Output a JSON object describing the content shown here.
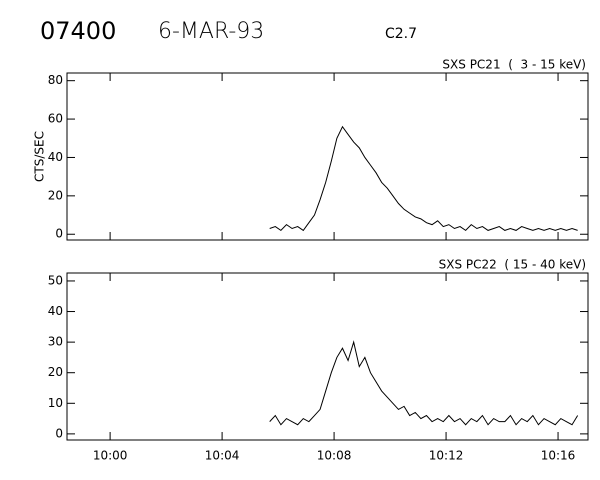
{
  "header": {
    "id": "07400",
    "date": "6-MAR-93",
    "class": "C2.7"
  },
  "chart_data": [
    {
      "type": "line",
      "title": "SXS PC21  (  3 - 15 keV)",
      "y_label": "CTS/SEC",
      "x": [
        5.7,
        5.9,
        6.1,
        6.3,
        6.5,
        6.7,
        6.9,
        7.1,
        7.3,
        7.5,
        7.7,
        7.9,
        8.1,
        8.3,
        8.5,
        8.7,
        8.9,
        9.1,
        9.3,
        9.5,
        9.7,
        9.9,
        10.1,
        10.3,
        10.5,
        10.7,
        10.9,
        11.1,
        11.3,
        11.5,
        11.7,
        11.9,
        12.1,
        12.3,
        12.5,
        12.7,
        12.9,
        13.1,
        13.3,
        13.5,
        13.7,
        13.9,
        14.1,
        14.3,
        14.5,
        14.7,
        14.9,
        15.1,
        15.3,
        15.5,
        15.7,
        15.9,
        16.1,
        16.3,
        16.5,
        16.7
      ],
      "series": [
        {
          "name": "PC21",
          "color": "#000000",
          "values": [
            3,
            4,
            2,
            5,
            3,
            4,
            2,
            6,
            10,
            18,
            27,
            38,
            50,
            56,
            52,
            48,
            45,
            40,
            36,
            32,
            27,
            24,
            20,
            16,
            13,
            11,
            9,
            8,
            6,
            5,
            7,
            4,
            5,
            3,
            4,
            2,
            5,
            3,
            4,
            2,
            3,
            4,
            2,
            3,
            2,
            4,
            3,
            2,
            3,
            2,
            3,
            2,
            3,
            2,
            3,
            2
          ]
        }
      ],
      "xlim": [
        -1.54,
        17.07
      ],
      "xticks": [
        0,
        4,
        8,
        12,
        16
      ],
      "ylim": [
        -3,
        84
      ],
      "yticks": [
        0,
        20,
        40,
        60,
        80
      ]
    },
    {
      "type": "line",
      "title": "SXS PC22  ( 15 - 40 keV)",
      "x": [
        5.7,
        5.9,
        6.1,
        6.3,
        6.5,
        6.7,
        6.9,
        7.1,
        7.3,
        7.5,
        7.7,
        7.9,
        8.1,
        8.3,
        8.5,
        8.7,
        8.9,
        9.1,
        9.3,
        9.5,
        9.7,
        9.9,
        10.1,
        10.3,
        10.5,
        10.7,
        10.9,
        11.1,
        11.3,
        11.5,
        11.7,
        11.9,
        12.1,
        12.3,
        12.5,
        12.7,
        12.9,
        13.1,
        13.3,
        13.5,
        13.7,
        13.9,
        14.1,
        14.3,
        14.5,
        14.7,
        14.9,
        15.1,
        15.3,
        15.5,
        15.7,
        15.9,
        16.1,
        16.3,
        16.5,
        16.7
      ],
      "series": [
        {
          "name": "PC22",
          "color": "#000000",
          "values": [
            4,
            6,
            3,
            5,
            4,
            3,
            5,
            4,
            6,
            8,
            14,
            20,
            25,
            28,
            24,
            30,
            22,
            25,
            20,
            17,
            14,
            12,
            10,
            8,
            9,
            6,
            7,
            5,
            6,
            4,
            5,
            4,
            6,
            4,
            5,
            3,
            5,
            4,
            6,
            3,
            5,
            4,
            4,
            6,
            3,
            5,
            4,
            6,
            3,
            5,
            4,
            3,
            5,
            4,
            3,
            6
          ]
        }
      ],
      "xlim": [
        -1.54,
        17.07
      ],
      "xticks": [
        {
          "value": 0,
          "label": "10:00"
        },
        {
          "value": 4,
          "label": "10:04"
        },
        {
          "value": 8,
          "label": "10:08"
        },
        {
          "value": 12,
          "label": "10:12"
        },
        {
          "value": 16,
          "label": "10:16"
        }
      ],
      "ylim": [
        -2,
        52.6
      ],
      "yticks": [
        0,
        10,
        20,
        30,
        40,
        50
      ]
    }
  ]
}
